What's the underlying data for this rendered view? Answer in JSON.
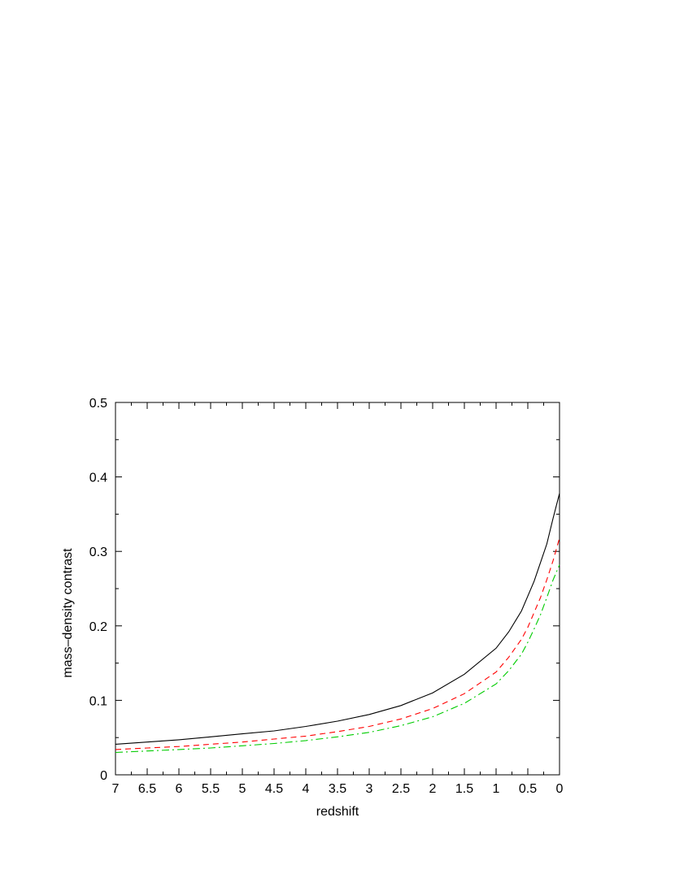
{
  "chart_data": {
    "type": "line",
    "xlabel": "redshift",
    "ylabel": "mass–density contrast",
    "xlim": [
      7,
      0
    ],
    "ylim": [
      0,
      0.5
    ],
    "x_reversed": true,
    "grid": false,
    "x_ticks": [
      "7",
      "6.5",
      "6",
      "5.5",
      "5",
      "4.5",
      "4",
      "3.5",
      "3",
      "2.5",
      "2",
      "1.5",
      "1",
      "0.5",
      "0"
    ],
    "y_ticks": [
      "0",
      "0.1",
      "0.2",
      "0.3",
      "0.4",
      "0.5"
    ],
    "x": [
      7,
      6.5,
      6,
      5.5,
      5,
      4.5,
      4,
      3.5,
      3,
      2.5,
      2,
      1.5,
      1,
      0.8,
      0.6,
      0.5,
      0.4,
      0.3,
      0.2,
      0.1,
      0
    ],
    "series": [
      {
        "style": "solid",
        "color": "#000000",
        "values": [
          0.041,
          0.044,
          0.047,
          0.051,
          0.055,
          0.059,
          0.065,
          0.072,
          0.081,
          0.093,
          0.11,
          0.135,
          0.17,
          0.192,
          0.22,
          0.24,
          0.26,
          0.285,
          0.31,
          0.345,
          0.378
        ]
      },
      {
        "style": "dashed",
        "color": "#ff0000",
        "values": [
          0.034,
          0.036,
          0.038,
          0.041,
          0.044,
          0.048,
          0.052,
          0.058,
          0.065,
          0.075,
          0.089,
          0.109,
          0.138,
          0.158,
          0.182,
          0.198,
          0.218,
          0.238,
          0.262,
          0.288,
          0.318
        ]
      },
      {
        "style": "dashdot",
        "color": "#00cc00",
        "values": [
          0.03,
          0.032,
          0.034,
          0.036,
          0.039,
          0.042,
          0.046,
          0.051,
          0.057,
          0.066,
          0.078,
          0.096,
          0.122,
          0.14,
          0.162,
          0.178,
          0.196,
          0.215,
          0.238,
          0.262,
          0.282
        ]
      }
    ]
  }
}
